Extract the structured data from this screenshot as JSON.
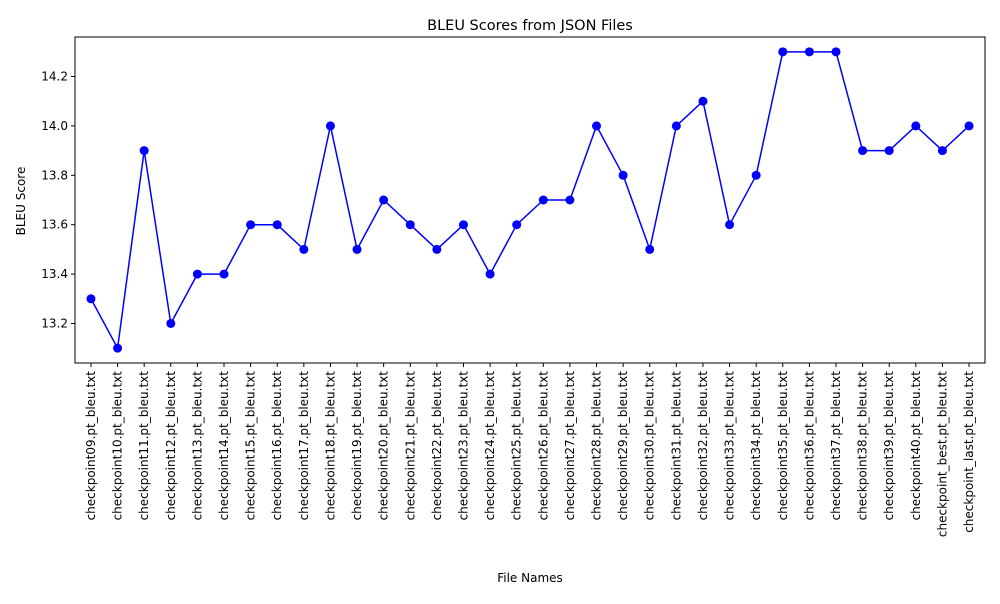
{
  "chart_data": {
    "type": "line",
    "title": "BLEU Scores from JSON Files",
    "xlabel": "File Names",
    "ylabel": "BLEU Score",
    "ylim": [
      13.04,
      14.36
    ],
    "yticks": [
      13.2,
      13.4,
      13.6,
      13.8,
      14.0,
      14.2
    ],
    "ytick_labels": [
      "13.2",
      "13.4",
      "13.6",
      "13.8",
      "14.0",
      "14.2"
    ],
    "grid": false,
    "marker": "circle",
    "line_color": "#0000ff",
    "categories": [
      "checkpoint09.pt_bleu.txt",
      "checkpoint10.pt_bleu.txt",
      "checkpoint11.pt_bleu.txt",
      "checkpoint12.pt_bleu.txt",
      "checkpoint13.pt_bleu.txt",
      "checkpoint14.pt_bleu.txt",
      "checkpoint15.pt_bleu.txt",
      "checkpoint16.pt_bleu.txt",
      "checkpoint17.pt_bleu.txt",
      "checkpoint18.pt_bleu.txt",
      "checkpoint19.pt_bleu.txt",
      "checkpoint20.pt_bleu.txt",
      "checkpoint21.pt_bleu.txt",
      "checkpoint22.pt_bleu.txt",
      "checkpoint23.pt_bleu.txt",
      "checkpoint24.pt_bleu.txt",
      "checkpoint25.pt_bleu.txt",
      "checkpoint26.pt_bleu.txt",
      "checkpoint27.pt_bleu.txt",
      "checkpoint28.pt_bleu.txt",
      "checkpoint29.pt_bleu.txt",
      "checkpoint30.pt_bleu.txt",
      "checkpoint31.pt_bleu.txt",
      "checkpoint32.pt_bleu.txt",
      "checkpoint33.pt_bleu.txt",
      "checkpoint34.pt_bleu.txt",
      "checkpoint35.pt_bleu.txt",
      "checkpoint36.pt_bleu.txt",
      "checkpoint37.pt_bleu.txt",
      "checkpoint38.pt_bleu.txt",
      "checkpoint39.pt_bleu.txt",
      "checkpoint40.pt_bleu.txt",
      "checkpoint_best.pt_bleu.txt",
      "checkpoint_last.pt_bleu.txt"
    ],
    "values": [
      13.3,
      13.1,
      13.9,
      13.2,
      13.4,
      13.4,
      13.6,
      13.6,
      13.5,
      14.0,
      13.5,
      13.7,
      13.6,
      13.5,
      13.6,
      13.4,
      13.6,
      13.7,
      13.7,
      14.0,
      13.8,
      13.5,
      14.0,
      14.1,
      13.6,
      13.8,
      14.3,
      14.3,
      14.3,
      13.9,
      13.9,
      14.0,
      13.9,
      14.0
    ]
  }
}
